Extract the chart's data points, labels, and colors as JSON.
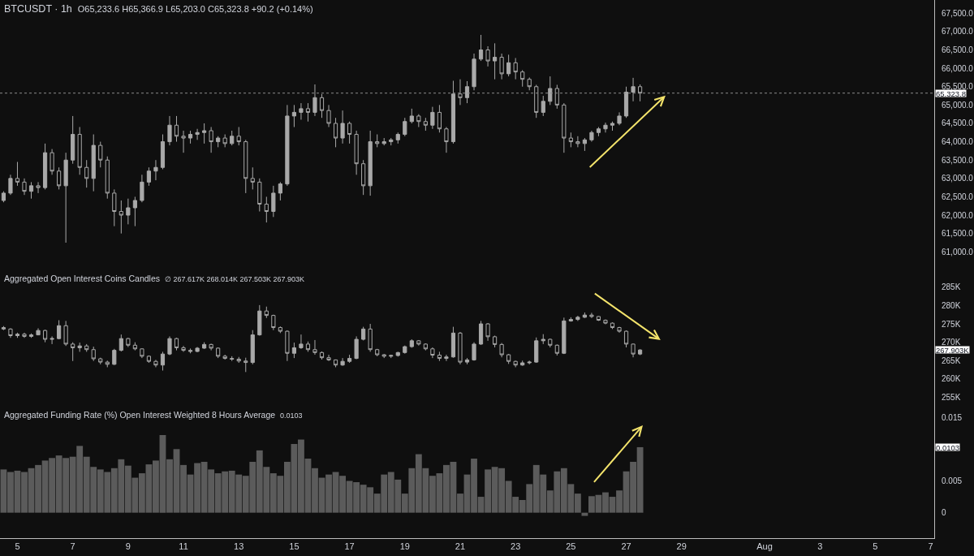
{
  "chart_data": [
    {
      "type": "candlestick",
      "title": "BTCUSDT · 1h",
      "subtitle": "O65,233.6 H65,366.9 L65,203.0 C65,323.8 +90.2 (+0.14%)",
      "color": "#a9a9a9",
      "x": [
        "--07-04T12:00",
        "--07-04T18:00",
        "--07-05T00:00",
        "--07-05T06:00",
        "--07-05T12:00",
        "--07-05T18:00",
        "--07-06T00:00",
        "--07-06T06:00",
        "--07-06T12:00",
        "--07-06T18:00",
        "--07-07T00:00",
        "--07-07T06:00",
        "--07-07T12:00",
        "--07-07T18:00",
        "--07-08T00:00",
        "--07-08T06:00",
        "--07-08T12:00",
        "--07-08T18:00",
        "--07-09T00:00",
        "--07-09T06:00",
        "--07-09T12:00",
        "--07-09T18:00",
        "--07-10T00:00",
        "--07-10T06:00",
        "--07-10T12:00",
        "--07-10T18:00",
        "--07-11T00:00",
        "--07-11T06:00",
        "--07-11T12:00",
        "--07-11T18:00",
        "--07-12T00:00",
        "--07-12T06:00",
        "--07-12T12:00",
        "--07-12T18:00",
        "--07-13T00:00",
        "--07-13T06:00",
        "--07-13T12:00",
        "--07-13T18:00",
        "--07-14T00:00",
        "--07-14T06:00",
        "--07-14T12:00",
        "--07-14T18:00",
        "--07-15T00:00",
        "--07-15T06:00",
        "--07-15T12:00",
        "--07-15T18:00",
        "--07-16T00:00",
        "--07-16T06:00",
        "--07-16T12:00",
        "--07-16T18:00",
        "--07-17T00:00",
        "--07-17T06:00",
        "--07-17T12:00",
        "--07-17T18:00",
        "--07-18T00:00",
        "--07-18T06:00",
        "--07-18T12:00",
        "--07-18T18:00",
        "--07-19T00:00",
        "--07-19T06:00",
        "--07-19T12:00",
        "--07-19T18:00",
        "--07-20T00:00",
        "--07-20T06:00",
        "--07-20T12:00",
        "--07-20T18:00",
        "--07-21T00:00",
        "--07-21T06:00",
        "--07-21T12:00",
        "--07-21T18:00",
        "--07-22T00:00",
        "--07-22T06:00",
        "--07-22T12:00",
        "--07-22T18:00",
        "--07-23T00:00",
        "--07-23T06:00",
        "--07-23T12:00",
        "--07-23T18:00",
        "--07-24T00:00",
        "--07-24T06:00",
        "--07-24T12:00",
        "--07-24T18:00",
        "--07-25T00:00",
        "--07-25T06:00",
        "--07-25T12:00",
        "--07-25T18:00",
        "--07-26T00:00",
        "--07-26T06:00",
        "--07-26T12:00",
        "--07-26T18:00",
        "--07-27T00:00",
        "--07-27T06:00",
        "--07-27T12:00"
      ],
      "ohlc": [
        [
          62400,
          62650,
          62350,
          62600
        ],
        [
          62600,
          63100,
          62550,
          63000
        ],
        [
          63000,
          63450,
          62800,
          62900
        ],
        [
          62900,
          63000,
          62550,
          62650
        ],
        [
          62650,
          62900,
          62450,
          62800
        ],
        [
          62800,
          62900,
          62600,
          62750
        ],
        [
          62750,
          63950,
          62700,
          63700
        ],
        [
          63700,
          63800,
          63100,
          63200
        ],
        [
          63200,
          63300,
          62700,
          62800
        ],
        [
          62800,
          63700,
          61250,
          63500
        ],
        [
          63500,
          64700,
          63400,
          64200
        ],
        [
          64200,
          64400,
          63100,
          63300
        ],
        [
          63300,
          63500,
          62750,
          63000
        ],
        [
          63000,
          64200,
          62650,
          63900
        ],
        [
          63900,
          64000,
          63300,
          63500
        ],
        [
          63500,
          63600,
          62450,
          62600
        ],
        [
          62600,
          62700,
          61700,
          62100
        ],
        [
          62100,
          62400,
          61500,
          62000
        ],
        [
          62000,
          62450,
          61750,
          62200
        ],
        [
          62200,
          62500,
          61700,
          62400
        ],
        [
          62400,
          63100,
          62350,
          62900
        ],
        [
          62900,
          63300,
          62800,
          63200
        ],
        [
          63200,
          63500,
          62950,
          63300
        ],
        [
          63300,
          64200,
          63250,
          64000
        ],
        [
          64000,
          64700,
          63900,
          64450
        ],
        [
          64450,
          64700,
          64000,
          64150
        ],
        [
          64150,
          64300,
          63700,
          64100
        ],
        [
          64100,
          64300,
          63950,
          64200
        ],
        [
          64200,
          64350,
          64050,
          64250
        ],
        [
          64250,
          64500,
          63950,
          64300
        ],
        [
          64300,
          64400,
          63700,
          64000
        ],
        [
          64000,
          64150,
          63850,
          64100
        ],
        [
          64100,
          64200,
          63850,
          63950
        ],
        [
          63950,
          64300,
          63900,
          64150
        ],
        [
          64150,
          64400,
          63900,
          64000
        ],
        [
          64000,
          64050,
          62600,
          63000
        ],
        [
          63000,
          63300,
          62700,
          62900
        ],
        [
          62900,
          63000,
          62100,
          62300
        ],
        [
          62300,
          62500,
          61800,
          62100
        ],
        [
          62100,
          62800,
          61950,
          62600
        ],
        [
          62600,
          62900,
          62400,
          62850
        ],
        [
          62850,
          65000,
          62800,
          64700
        ],
        [
          64700,
          65000,
          64400,
          64800
        ],
        [
          64800,
          65050,
          64600,
          64900
        ],
        [
          64900,
          65050,
          64550,
          64800
        ],
        [
          64800,
          65560,
          64700,
          65200
        ],
        [
          65200,
          65300,
          64650,
          64850
        ],
        [
          64850,
          65000,
          64400,
          64500
        ],
        [
          64500,
          64650,
          63850,
          64100
        ],
        [
          64100,
          64850,
          63950,
          64500
        ],
        [
          64500,
          64550,
          63950,
          64200
        ],
        [
          64200,
          64300,
          63100,
          63400
        ],
        [
          63400,
          63500,
          62550,
          62800
        ],
        [
          62800,
          64300,
          62530,
          64000
        ],
        [
          64000,
          64200,
          63850,
          63950
        ],
        [
          63950,
          64100,
          63900,
          64000
        ],
        [
          64000,
          64100,
          63900,
          64050
        ],
        [
          64050,
          64250,
          63950,
          64200
        ],
        [
          64200,
          64650,
          64150,
          64550
        ],
        [
          64550,
          64900,
          64500,
          64700
        ],
        [
          64700,
          64750,
          64400,
          64550
        ],
        [
          64550,
          64650,
          64300,
          64450
        ],
        [
          64450,
          64950,
          64350,
          64800
        ],
        [
          64800,
          65000,
          64250,
          64350
        ],
        [
          64350,
          64400,
          63700,
          64000
        ],
        [
          64000,
          65660,
          63950,
          65300
        ],
        [
          65300,
          65700,
          65000,
          65200
        ],
        [
          65200,
          65650,
          65050,
          65500
        ],
        [
          65500,
          66400,
          65400,
          66250
        ],
        [
          66250,
          66910,
          66200,
          66500
        ],
        [
          66500,
          66600,
          66050,
          66200
        ],
        [
          66200,
          66680,
          65700,
          66300
        ],
        [
          66300,
          66400,
          65700,
          65850
        ],
        [
          65850,
          66370,
          65780,
          66150
        ],
        [
          66150,
          66280,
          65700,
          65900
        ],
        [
          65900,
          65950,
          65500,
          65700
        ],
        [
          65700,
          65750,
          65400,
          65500
        ],
        [
          65500,
          65550,
          64650,
          64800
        ],
        [
          64800,
          65250,
          64700,
          65100
        ],
        [
          65100,
          65780,
          65000,
          65450
        ],
        [
          65450,
          65550,
          64900,
          65000
        ],
        [
          65000,
          65050,
          63700,
          64100
        ],
        [
          64100,
          64250,
          63850,
          64000
        ],
        [
          64000,
          64150,
          63850,
          63950
        ],
        [
          63950,
          64100,
          63750,
          64050
        ],
        [
          64050,
          64300,
          64000,
          64250
        ],
        [
          64250,
          64400,
          64150,
          64350
        ],
        [
          64350,
          64520,
          64250,
          64450
        ],
        [
          64450,
          64550,
          64300,
          64500
        ],
        [
          64500,
          64800,
          64450,
          64700
        ],
        [
          64700,
          65500,
          64650,
          65350
        ],
        [
          65350,
          65740,
          65100,
          65500
        ],
        [
          65500,
          65560,
          65100,
          65323.8
        ]
      ],
      "xlim": [
        "--07-04T08:53",
        "--08-07T03:07"
      ],
      "ylim": [
        60520,
        67860
      ],
      "yticks": [
        {
          "value": 61000,
          "label": "61,000.0"
        },
        {
          "value": 61500,
          "label": "61,500.0"
        },
        {
          "value": 62000,
          "label": "62,000.0"
        },
        {
          "value": 62500,
          "label": "62,500.0"
        },
        {
          "value": 63000,
          "label": "63,000.0"
        },
        {
          "value": 63500,
          "label": "63,500.0"
        },
        {
          "value": 64000,
          "label": "64,000.0"
        },
        {
          "value": 64500,
          "label": "64,500.0"
        },
        {
          "value": 65000,
          "label": "65,000.0"
        },
        {
          "value": 65500,
          "label": "65,500.0"
        },
        {
          "value": 66000,
          "label": "66,000.0"
        },
        {
          "value": 66500,
          "label": "66,500.0"
        },
        {
          "value": 67000,
          "label": "67,000.0"
        },
        {
          "value": 67500,
          "label": "67,500.0"
        }
      ],
      "ref_lines": [
        {
          "axis": "y",
          "value": 65323.8,
          "label": "65,323.8",
          "line_style": "dotted",
          "color": "#8c8c8c"
        }
      ],
      "tick_labels": "y"
    },
    {
      "type": "candlestick",
      "title": "Aggregated Open Interest Coins Candles",
      "subtitle": "∅ 267.617K 268.014K 267.503K 267.903K",
      "color": "#a9a9a9",
      "x": [
        "--07-04T12:00",
        "--07-04T18:00",
        "--07-05T00:00",
        "--07-05T06:00",
        "--07-05T12:00",
        "--07-05T18:00",
        "--07-06T00:00",
        "--07-06T06:00",
        "--07-06T12:00",
        "--07-06T18:00",
        "--07-07T00:00",
        "--07-07T06:00",
        "--07-07T12:00",
        "--07-07T18:00",
        "--07-08T00:00",
        "--07-08T06:00",
        "--07-08T12:00",
        "--07-08T18:00",
        "--07-09T00:00",
        "--07-09T06:00",
        "--07-09T12:00",
        "--07-09T18:00",
        "--07-10T00:00",
        "--07-10T06:00",
        "--07-10T12:00",
        "--07-10T18:00",
        "--07-11T00:00",
        "--07-11T06:00",
        "--07-11T12:00",
        "--07-11T18:00",
        "--07-12T00:00",
        "--07-12T06:00",
        "--07-12T12:00",
        "--07-12T18:00",
        "--07-13T00:00",
        "--07-13T06:00",
        "--07-13T12:00",
        "--07-13T18:00",
        "--07-14T00:00",
        "--07-14T06:00",
        "--07-14T12:00",
        "--07-14T18:00",
        "--07-15T00:00",
        "--07-15T06:00",
        "--07-15T12:00",
        "--07-15T18:00",
        "--07-16T00:00",
        "--07-16T06:00",
        "--07-16T12:00",
        "--07-16T18:00",
        "--07-17T00:00",
        "--07-17T06:00",
        "--07-17T12:00",
        "--07-17T18:00",
        "--07-18T00:00",
        "--07-18T06:00",
        "--07-18T12:00",
        "--07-18T18:00",
        "--07-19T00:00",
        "--07-19T06:00",
        "--07-19T12:00",
        "--07-19T18:00",
        "--07-20T00:00",
        "--07-20T06:00",
        "--07-20T12:00",
        "--07-20T18:00",
        "--07-21T00:00",
        "--07-21T06:00",
        "--07-21T12:00",
        "--07-21T18:00",
        "--07-22T00:00",
        "--07-22T06:00",
        "--07-22T12:00",
        "--07-22T18:00",
        "--07-23T00:00",
        "--07-23T06:00",
        "--07-23T12:00",
        "--07-23T18:00",
        "--07-24T00:00",
        "--07-24T06:00",
        "--07-24T12:00",
        "--07-24T18:00",
        "--07-25T00:00",
        "--07-25T06:00",
        "--07-25T12:00",
        "--07-25T18:00",
        "--07-26T00:00",
        "--07-26T06:00",
        "--07-26T12:00",
        "--07-26T18:00",
        "--07-27T00:00",
        "--07-27T06:00",
        "--07-27T12:00"
      ],
      "ohlc": [
        [
          274.0,
          274.4,
          273.3,
          273.6
        ],
        [
          273.6,
          273.8,
          271.2,
          271.8
        ],
        [
          271.8,
          272.6,
          271.2,
          272.2
        ],
        [
          272.2,
          272.6,
          271.2,
          271.6
        ],
        [
          271.6,
          272.4,
          271.2,
          272.0
        ],
        [
          272.0,
          273.8,
          271.9,
          273.2
        ],
        [
          273.2,
          273.4,
          270.0,
          270.8
        ],
        [
          270.8,
          271.6,
          269.5,
          271.0
        ],
        [
          271.0,
          276.0,
          270.8,
          274.5
        ],
        [
          274.5,
          275.8,
          269.0,
          269.5
        ],
        [
          269.5,
          270.0,
          264.9,
          268.5
        ],
        [
          268.5,
          269.9,
          267.4,
          269.0
        ],
        [
          269.0,
          269.5,
          267.4,
          268.0
        ],
        [
          268.0,
          268.8,
          264.9,
          265.5
        ],
        [
          265.5,
          265.8,
          264.0,
          264.6
        ],
        [
          264.6,
          265.0,
          263.2,
          264.0
        ],
        [
          264.0,
          268.2,
          263.8,
          267.8
        ],
        [
          267.8,
          272.1,
          267.5,
          271.0
        ],
        [
          271.0,
          271.2,
          268.7,
          269.2
        ],
        [
          269.2,
          270.0,
          267.8,
          268.2
        ],
        [
          268.2,
          268.3,
          265.7,
          266.2
        ],
        [
          266.2,
          266.4,
          264.4,
          264.8
        ],
        [
          264.8,
          265.2,
          263.2,
          263.8
        ],
        [
          263.8,
          267.4,
          262.3,
          266.8
        ],
        [
          266.8,
          271.6,
          266.5,
          271.0
        ],
        [
          271.0,
          271.2,
          267.8,
          268.5
        ],
        [
          268.5,
          269.0,
          267.4,
          267.8
        ],
        [
          267.8,
          268.3,
          267.0,
          267.5
        ],
        [
          267.5,
          268.7,
          267.3,
          268.4
        ],
        [
          268.4,
          270.0,
          268.2,
          269.4
        ],
        [
          269.4,
          269.6,
          267.8,
          268.4
        ],
        [
          268.4,
          268.6,
          265.7,
          266.2
        ],
        [
          266.2,
          266.6,
          265.3,
          265.6
        ],
        [
          265.6,
          266.2,
          264.9,
          265.4
        ],
        [
          265.4,
          266.0,
          264.4,
          264.9
        ],
        [
          264.9,
          265.8,
          261.9,
          264.5
        ],
        [
          264.5,
          273.3,
          264.0,
          272.0
        ],
        [
          272.0,
          280.1,
          271.8,
          278.5
        ],
        [
          278.5,
          279.7,
          276.6,
          277.3
        ],
        [
          277.3,
          277.5,
          273.3,
          274.0
        ],
        [
          274.0,
          274.3,
          272.5,
          273.0
        ],
        [
          273.0,
          273.2,
          264.9,
          267.0
        ],
        [
          267.0,
          269.9,
          265.7,
          268.5
        ],
        [
          268.5,
          272.1,
          268.2,
          269.5
        ],
        [
          269.5,
          270.2,
          267.4,
          268.0
        ],
        [
          268.0,
          270.6,
          266.6,
          267.2
        ],
        [
          267.2,
          267.5,
          265.3,
          265.8
        ],
        [
          265.8,
          266.6,
          264.9,
          265.2
        ],
        [
          265.2,
          265.3,
          263.2,
          263.8
        ],
        [
          263.8,
          265.7,
          263.6,
          264.8
        ],
        [
          264.8,
          266.6,
          264.4,
          265.6
        ],
        [
          265.6,
          271.6,
          265.4,
          270.8
        ],
        [
          270.8,
          274.2,
          270.5,
          273.6
        ],
        [
          273.6,
          275.0,
          267.4,
          268.0
        ],
        [
          268.0,
          268.2,
          266.2,
          266.6
        ],
        [
          266.6,
          266.8,
          265.7,
          266.2
        ],
        [
          266.2,
          266.6,
          265.7,
          266.4
        ],
        [
          266.4,
          267.4,
          266.1,
          267.2
        ],
        [
          267.2,
          269.1,
          266.9,
          268.8
        ],
        [
          268.8,
          270.8,
          268.5,
          270.4
        ],
        [
          270.4,
          270.6,
          269.1,
          269.5
        ],
        [
          269.5,
          269.7,
          267.8,
          268.2
        ],
        [
          268.2,
          268.6,
          265.7,
          266.5
        ],
        [
          266.5,
          267.4,
          264.9,
          265.6
        ],
        [
          265.6,
          266.6,
          264.9,
          266.0
        ],
        [
          266.0,
          274.2,
          265.8,
          272.5
        ],
        [
          272.5,
          272.8,
          264.0,
          264.6
        ],
        [
          264.6,
          265.7,
          264.0,
          265.2
        ],
        [
          265.2,
          270.0,
          265.0,
          269.5
        ],
        [
          269.5,
          275.8,
          269.3,
          275.0
        ],
        [
          275.0,
          275.2,
          270.4,
          271.5
        ],
        [
          271.5,
          271.8,
          268.6,
          269.4
        ],
        [
          269.4,
          269.8,
          265.9,
          266.6
        ],
        [
          266.6,
          266.8,
          264.1,
          264.8
        ],
        [
          264.8,
          265.0,
          263.2,
          263.8
        ],
        [
          263.8,
          265.0,
          263.6,
          264.4
        ],
        [
          264.4,
          265.0,
          264.0,
          264.6
        ],
        [
          264.6,
          271.3,
          264.4,
          270.4
        ],
        [
          270.4,
          272.2,
          269.5,
          270.8
        ],
        [
          270.8,
          271.0,
          268.6,
          269.2
        ],
        [
          269.2,
          269.4,
          266.4,
          267.0
        ],
        [
          267.0,
          276.7,
          266.8,
          275.8
        ],
        [
          275.8,
          276.8,
          275.6,
          276.2
        ],
        [
          276.2,
          277.2,
          275.8,
          276.8
        ],
        [
          276.8,
          278.1,
          276.6,
          277.4
        ],
        [
          277.4,
          278.0,
          276.6,
          277.0
        ],
        [
          277.0,
          277.1,
          275.8,
          276.0
        ],
        [
          276.0,
          276.2,
          274.9,
          275.2
        ],
        [
          275.2,
          275.4,
          273.6,
          274.0
        ],
        [
          274.0,
          274.2,
          272.6,
          273.0
        ],
        [
          273.0,
          273.2,
          268.6,
          269.5
        ],
        [
          269.5,
          269.6,
          265.9,
          266.8
        ],
        [
          266.8,
          268.1,
          266.5,
          267.903
        ]
      ],
      "xlim": [
        "--07-04T08:53",
        "--08-07T03:07"
      ],
      "ylim": [
        252.7,
        289.8
      ],
      "yticks": [
        {
          "value": 255,
          "label": "255K"
        },
        {
          "value": 260,
          "label": "260K"
        },
        {
          "value": 265,
          "label": "265K"
        },
        {
          "value": 270,
          "label": "270K"
        },
        {
          "value": 275,
          "label": "275K"
        },
        {
          "value": 280,
          "label": "280K"
        },
        {
          "value": 285,
          "label": "285K"
        }
      ],
      "annotations": [
        "267.903K"
      ],
      "tick_labels": "y"
    },
    {
      "type": "bar",
      "title": "Aggregated Funding Rate (%) Open Interest Weighted 8 Hours Average",
      "subtitle": "0.0103",
      "color": "#5b5b5b",
      "x": [
        "--07-04T12:00",
        "--07-04T18:00",
        "--07-05T00:00",
        "--07-05T06:00",
        "--07-05T12:00",
        "--07-05T18:00",
        "--07-06T00:00",
        "--07-06T06:00",
        "--07-06T12:00",
        "--07-06T18:00",
        "--07-07T00:00",
        "--07-07T06:00",
        "--07-07T12:00",
        "--07-07T18:00",
        "--07-08T00:00",
        "--07-08T06:00",
        "--07-08T12:00",
        "--07-08T18:00",
        "--07-09T00:00",
        "--07-09T06:00",
        "--07-09T12:00",
        "--07-09T18:00",
        "--07-10T00:00",
        "--07-10T06:00",
        "--07-10T12:00",
        "--07-10T18:00",
        "--07-11T00:00",
        "--07-11T06:00",
        "--07-11T12:00",
        "--07-11T18:00",
        "--07-12T00:00",
        "--07-12T06:00",
        "--07-12T12:00",
        "--07-12T18:00",
        "--07-13T00:00",
        "--07-13T06:00",
        "--07-13T12:00",
        "--07-13T18:00",
        "--07-14T00:00",
        "--07-14T06:00",
        "--07-14T12:00",
        "--07-14T18:00",
        "--07-15T00:00",
        "--07-15T06:00",
        "--07-15T12:00",
        "--07-15T18:00",
        "--07-16T00:00",
        "--07-16T06:00",
        "--07-16T12:00",
        "--07-16T18:00",
        "--07-17T00:00",
        "--07-17T06:00",
        "--07-17T12:00",
        "--07-17T18:00",
        "--07-18T00:00",
        "--07-18T06:00",
        "--07-18T12:00",
        "--07-18T18:00",
        "--07-19T00:00",
        "--07-19T06:00",
        "--07-19T12:00",
        "--07-19T18:00",
        "--07-20T00:00",
        "--07-20T06:00",
        "--07-20T12:00",
        "--07-20T18:00",
        "--07-21T00:00",
        "--07-21T06:00",
        "--07-21T12:00",
        "--07-21T18:00",
        "--07-22T00:00",
        "--07-22T06:00",
        "--07-22T12:00",
        "--07-22T18:00",
        "--07-23T00:00",
        "--07-23T06:00",
        "--07-23T12:00",
        "--07-23T18:00",
        "--07-24T00:00",
        "--07-24T06:00",
        "--07-24T12:00",
        "--07-24T18:00",
        "--07-25T00:00",
        "--07-25T06:00",
        "--07-25T12:00",
        "--07-25T18:00",
        "--07-26T00:00",
        "--07-26T06:00",
        "--07-26T12:00",
        "--07-26T18:00",
        "--07-27T00:00",
        "--07-27T06:00",
        "--07-27T12:00"
      ],
      "values": [
        0.0068,
        0.0064,
        0.0066,
        0.0064,
        0.007,
        0.0075,
        0.0082,
        0.0086,
        0.009,
        0.0086,
        0.0088,
        0.0105,
        0.0088,
        0.0072,
        0.0068,
        0.0064,
        0.007,
        0.0084,
        0.0074,
        0.0055,
        0.0062,
        0.0076,
        0.0082,
        0.0122,
        0.0084,
        0.01,
        0.0075,
        0.006,
        0.0078,
        0.008,
        0.0068,
        0.0062,
        0.0065,
        0.0066,
        0.006,
        0.0058,
        0.008,
        0.0098,
        0.0072,
        0.0062,
        0.0058,
        0.008,
        0.0108,
        0.0115,
        0.0085,
        0.007,
        0.0055,
        0.006,
        0.0064,
        0.0058,
        0.005,
        0.0048,
        0.0044,
        0.004,
        0.003,
        0.006,
        0.0064,
        0.0052,
        0.003,
        0.007,
        0.0092,
        0.007,
        0.0058,
        0.0062,
        0.0075,
        0.008,
        0.003,
        0.006,
        0.0085,
        0.0025,
        0.0068,
        0.0072,
        0.007,
        0.005,
        0.0025,
        0.002,
        0.0045,
        0.0075,
        0.006,
        0.0035,
        0.0065,
        0.007,
        0.0045,
        0.003,
        -0.0005,
        0.0026,
        0.0028,
        0.0032,
        0.0025,
        0.0035,
        0.0065,
        0.008,
        0.0103
      ],
      "xlim": [
        "--07-04T08:53",
        "--08-07T03:07"
      ],
      "ylim": [
        -0.004,
        0.0168
      ],
      "xticks": [
        {
          "value": "--07-05",
          "label": "5"
        },
        {
          "value": "--07-07",
          "label": "7"
        },
        {
          "value": "--07-09",
          "label": "9"
        },
        {
          "value": "--07-11",
          "label": "11"
        },
        {
          "value": "--07-13",
          "label": "13"
        },
        {
          "value": "--07-15",
          "label": "15"
        },
        {
          "value": "--07-17",
          "label": "17"
        },
        {
          "value": "--07-19",
          "label": "19"
        },
        {
          "value": "--07-21",
          "label": "21"
        },
        {
          "value": "--07-23",
          "label": "23"
        },
        {
          "value": "--07-25",
          "label": "25"
        },
        {
          "value": "--07-27",
          "label": "27"
        },
        {
          "value": "--07-29",
          "label": "29"
        },
        {
          "value": "--08-01",
          "label": "Aug"
        },
        {
          "value": "--08-03",
          "label": "3"
        },
        {
          "value": "--08-05",
          "label": "5"
        },
        {
          "value": "--08-07",
          "label": "7"
        }
      ],
      "yticks": [
        0,
        0.005,
        0.015
      ],
      "annotations": [
        "0.0103"
      ]
    }
  ]
}
